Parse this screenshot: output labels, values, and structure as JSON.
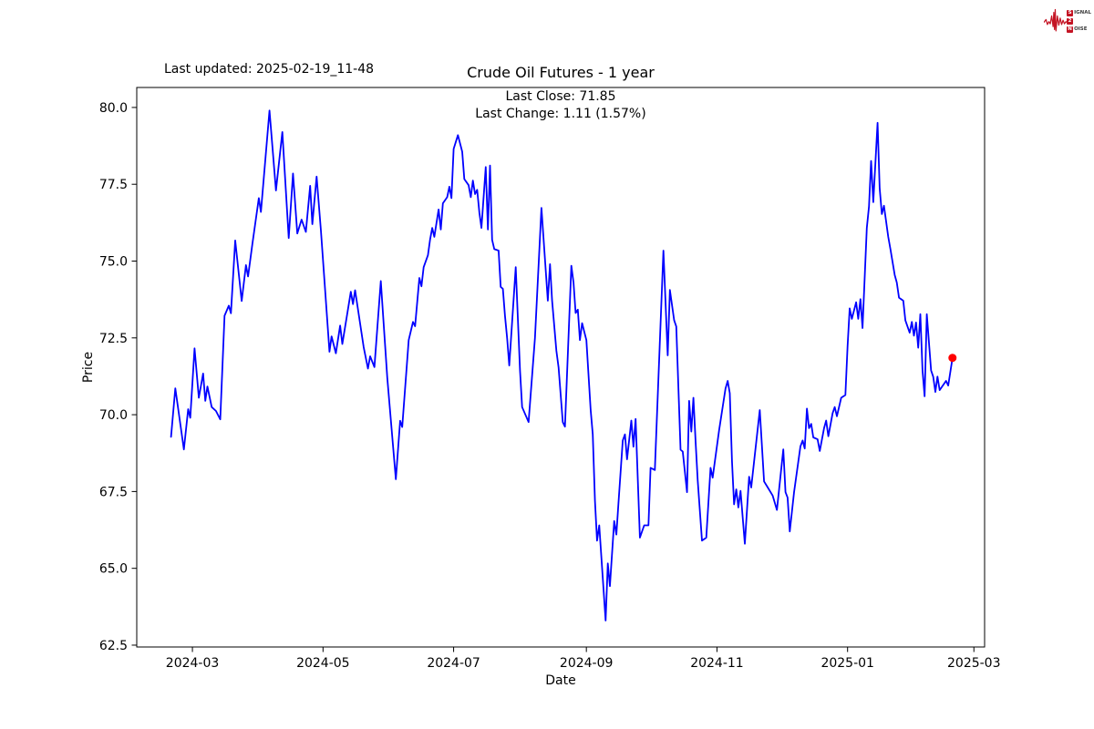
{
  "header": {
    "last_updated": "Last updated: 2025-02-19_11-48",
    "title": "Crude Oil Futures - 1 year"
  },
  "annotation": {
    "line1": "Last Close: 71.85",
    "line2": "Last Change: 1.11 (1.57%)"
  },
  "logo": {
    "rows": [
      {
        "boxed": "S",
        "rest": "IGNAL"
      },
      {
        "boxed": "2",
        "rest": ""
      },
      {
        "boxed": "N",
        "rest": "OISE"
      }
    ],
    "accent_color": "#c41424"
  },
  "chart_data": {
    "type": "line",
    "title": "Crude Oil Futures - 1 year",
    "xlabel": "Date",
    "ylabel": "Price",
    "last_close": 71.85,
    "last_change": 1.11,
    "last_change_pct": 1.57,
    "line_color": "#0000ff",
    "last_point_color": "#ff0000",
    "grid": false,
    "x_axis": {
      "start": "2024-02-04",
      "end": "2025-03-06",
      "ticks": [
        {
          "date": "2024-03-01",
          "label": "2024-03"
        },
        {
          "date": "2024-05-01",
          "label": "2024-05"
        },
        {
          "date": "2024-07-01",
          "label": "2024-07"
        },
        {
          "date": "2024-09-01",
          "label": "2024-09"
        },
        {
          "date": "2024-11-01",
          "label": "2024-11"
        },
        {
          "date": "2025-01-01",
          "label": "2025-01"
        },
        {
          "date": "2025-03-01",
          "label": "2025-03"
        }
      ]
    },
    "y_axis": {
      "min": 62.44,
      "max": 80.65,
      "ticks": [
        {
          "v": 62.5,
          "label": "62.5"
        },
        {
          "v": 65.0,
          "label": "65.0"
        },
        {
          "v": 67.5,
          "label": "67.5"
        },
        {
          "v": 70.0,
          "label": "70.0"
        },
        {
          "v": 72.5,
          "label": "72.5"
        },
        {
          "v": 75.0,
          "label": "75.0"
        },
        {
          "v": 77.5,
          "label": "77.5"
        },
        {
          "v": 80.0,
          "label": "80.0"
        }
      ]
    },
    "points": [
      [
        "2024-02-20",
        69.28
      ],
      [
        "2024-02-22",
        70.86
      ],
      [
        "2024-02-26",
        68.87
      ],
      [
        "2024-02-28",
        70.18
      ],
      [
        "2024-02-29",
        69.9
      ],
      [
        "2024-03-02",
        72.16
      ],
      [
        "2024-03-04",
        70.55
      ],
      [
        "2024-03-06",
        71.34
      ],
      [
        "2024-03-07",
        70.45
      ],
      [
        "2024-03-08",
        70.92
      ],
      [
        "2024-03-10",
        70.25
      ],
      [
        "2024-03-12",
        70.12
      ],
      [
        "2024-03-14",
        69.85
      ],
      [
        "2024-03-16",
        73.22
      ],
      [
        "2024-03-18",
        73.55
      ],
      [
        "2024-03-19",
        73.3
      ],
      [
        "2024-03-21",
        75.67
      ],
      [
        "2024-03-24",
        73.7
      ],
      [
        "2024-03-26",
        74.87
      ],
      [
        "2024-03-27",
        74.5
      ],
      [
        "2024-03-29",
        75.55
      ],
      [
        "2024-04-01",
        77.05
      ],
      [
        "2024-04-02",
        76.6
      ],
      [
        "2024-04-06",
        79.9
      ],
      [
        "2024-04-09",
        77.3
      ],
      [
        "2024-04-12",
        79.2
      ],
      [
        "2024-04-15",
        75.75
      ],
      [
        "2024-04-17",
        77.85
      ],
      [
        "2024-04-19",
        75.9
      ],
      [
        "2024-04-21",
        76.35
      ],
      [
        "2024-04-23",
        75.95
      ],
      [
        "2024-04-25",
        77.45
      ],
      [
        "2024-04-26",
        76.2
      ],
      [
        "2024-04-28",
        77.75
      ],
      [
        "2024-04-30",
        76.0
      ],
      [
        "2024-05-04",
        72.05
      ],
      [
        "2024-05-05",
        72.55
      ],
      [
        "2024-05-07",
        72.0
      ],
      [
        "2024-05-09",
        72.9
      ],
      [
        "2024-05-10",
        72.3
      ],
      [
        "2024-05-14",
        74.0
      ],
      [
        "2024-05-15",
        73.6
      ],
      [
        "2024-05-16",
        74.05
      ],
      [
        "2024-05-20",
        72.2
      ],
      [
        "2024-05-22",
        71.5
      ],
      [
        "2024-05-23",
        71.9
      ],
      [
        "2024-05-25",
        71.55
      ],
      [
        "2024-05-28",
        74.35
      ],
      [
        "2024-05-31",
        71.2
      ],
      [
        "2024-06-04",
        67.9
      ],
      [
        "2024-06-06",
        69.8
      ],
      [
        "2024-06-07",
        69.6
      ],
      [
        "2024-06-10",
        72.43
      ],
      [
        "2024-06-12",
        73.02
      ],
      [
        "2024-06-13",
        72.88
      ],
      [
        "2024-06-15",
        74.45
      ],
      [
        "2024-06-16",
        74.18
      ],
      [
        "2024-06-17",
        74.8
      ],
      [
        "2024-06-19",
        75.19
      ],
      [
        "2024-06-20",
        75.69
      ],
      [
        "2024-06-21",
        76.08
      ],
      [
        "2024-06-22",
        75.79
      ],
      [
        "2024-06-24",
        76.68
      ],
      [
        "2024-06-25",
        76.03
      ],
      [
        "2024-06-26",
        76.88
      ],
      [
        "2024-06-28",
        77.08
      ],
      [
        "2024-06-29",
        77.42
      ],
      [
        "2024-06-30",
        77.05
      ],
      [
        "2024-07-01",
        78.65
      ],
      [
        "2024-07-03",
        79.1
      ],
      [
        "2024-07-05",
        78.56
      ],
      [
        "2024-07-06",
        77.67
      ],
      [
        "2024-07-08",
        77.47
      ],
      [
        "2024-07-09",
        77.08
      ],
      [
        "2024-07-10",
        77.62
      ],
      [
        "2024-07-11",
        77.18
      ],
      [
        "2024-07-12",
        77.32
      ],
      [
        "2024-07-13",
        76.58
      ],
      [
        "2024-07-14",
        76.08
      ],
      [
        "2024-07-16",
        78.06
      ],
      [
        "2024-07-17",
        76.03
      ],
      [
        "2024-07-18",
        78.11
      ],
      [
        "2024-07-19",
        75.69
      ],
      [
        "2024-07-20",
        75.39
      ],
      [
        "2024-07-22",
        75.34
      ],
      [
        "2024-07-23",
        74.16
      ],
      [
        "2024-07-24",
        74.1
      ],
      [
        "2024-07-25",
        73.22
      ],
      [
        "2024-07-26",
        72.48
      ],
      [
        "2024-07-27",
        71.6
      ],
      [
        "2024-07-30",
        74.8
      ],
      [
        "2024-08-01",
        71.44
      ],
      [
        "2024-08-02",
        70.25
      ],
      [
        "2024-08-05",
        69.76
      ],
      [
        "2024-08-08",
        72.5
      ],
      [
        "2024-08-11",
        76.73
      ],
      [
        "2024-08-14",
        73.71
      ],
      [
        "2024-08-15",
        74.9
      ],
      [
        "2024-08-16",
        73.71
      ],
      [
        "2024-08-18",
        72.08
      ],
      [
        "2024-08-19",
        71.54
      ],
      [
        "2024-08-21",
        69.76
      ],
      [
        "2024-08-22",
        69.61
      ],
      [
        "2024-08-25",
        74.85
      ],
      [
        "2024-08-26",
        74.3
      ],
      [
        "2024-08-27",
        73.31
      ],
      [
        "2024-08-28",
        73.42
      ],
      [
        "2024-08-29",
        72.43
      ],
      [
        "2024-08-30",
        72.98
      ],
      [
        "2024-09-01",
        72.43
      ],
      [
        "2024-09-03",
        70.15
      ],
      [
        "2024-09-04",
        69.36
      ],
      [
        "2024-09-05",
        67.2
      ],
      [
        "2024-09-06",
        65.9
      ],
      [
        "2024-09-07",
        66.4
      ],
      [
        "2024-09-10",
        63.3
      ],
      [
        "2024-09-11",
        65.16
      ],
      [
        "2024-09-12",
        64.42
      ],
      [
        "2024-09-14",
        66.54
      ],
      [
        "2024-09-15",
        66.1
      ],
      [
        "2024-09-16",
        67.13
      ],
      [
        "2024-09-18",
        69.16
      ],
      [
        "2024-09-19",
        69.36
      ],
      [
        "2024-09-20",
        68.55
      ],
      [
        "2024-09-22",
        69.81
      ],
      [
        "2024-09-23",
        68.96
      ],
      [
        "2024-09-24",
        69.86
      ],
      [
        "2024-09-26",
        66.0
      ],
      [
        "2024-09-28",
        66.4
      ],
      [
        "2024-09-30",
        66.4
      ],
      [
        "2024-10-01",
        68.27
      ],
      [
        "2024-10-03",
        68.2
      ],
      [
        "2024-10-07",
        75.34
      ],
      [
        "2024-10-09",
        71.93
      ],
      [
        "2024-10-10",
        74.06
      ],
      [
        "2024-10-12",
        73.07
      ],
      [
        "2024-10-13",
        72.87
      ],
      [
        "2024-10-15",
        68.86
      ],
      [
        "2024-10-16",
        68.8
      ],
      [
        "2024-10-18",
        67.48
      ],
      [
        "2024-10-19",
        70.45
      ],
      [
        "2024-10-20",
        69.45
      ],
      [
        "2024-10-21",
        70.55
      ],
      [
        "2024-10-22",
        69.12
      ],
      [
        "2024-10-23",
        67.87
      ],
      [
        "2024-10-25",
        65.9
      ],
      [
        "2024-10-27",
        66.0
      ],
      [
        "2024-10-29",
        68.27
      ],
      [
        "2024-10-30",
        67.95
      ],
      [
        "2024-11-02",
        69.5
      ],
      [
        "2024-11-05",
        70.85
      ],
      [
        "2024-11-06",
        71.1
      ],
      [
        "2024-11-07",
        70.7
      ],
      [
        "2024-11-08",
        68.5
      ],
      [
        "2024-11-09",
        67.08
      ],
      [
        "2024-11-10",
        67.57
      ],
      [
        "2024-11-11",
        66.98
      ],
      [
        "2024-11-12",
        67.52
      ],
      [
        "2024-11-14",
        65.8
      ],
      [
        "2024-11-16",
        67.98
      ],
      [
        "2024-11-17",
        67.63
      ],
      [
        "2024-11-21",
        70.15
      ],
      [
        "2024-11-23",
        67.83
      ],
      [
        "2024-11-25",
        67.6
      ],
      [
        "2024-11-27",
        67.37
      ],
      [
        "2024-11-29",
        66.9
      ],
      [
        "2024-12-02",
        68.87
      ],
      [
        "2024-12-03",
        67.48
      ],
      [
        "2024-12-04",
        67.3
      ],
      [
        "2024-12-05",
        66.2
      ],
      [
        "2024-12-07",
        67.48
      ],
      [
        "2024-12-10",
        68.97
      ],
      [
        "2024-12-11",
        69.16
      ],
      [
        "2024-12-12",
        68.9
      ],
      [
        "2024-12-13",
        70.2
      ],
      [
        "2024-12-14",
        69.56
      ],
      [
        "2024-12-15",
        69.7
      ],
      [
        "2024-12-16",
        69.26
      ],
      [
        "2024-12-18",
        69.2
      ],
      [
        "2024-12-19",
        68.82
      ],
      [
        "2024-12-21",
        69.56
      ],
      [
        "2024-12-22",
        69.81
      ],
      [
        "2024-12-23",
        69.3
      ],
      [
        "2024-12-25",
        70.05
      ],
      [
        "2024-12-26",
        70.25
      ],
      [
        "2024-12-27",
        69.95
      ],
      [
        "2024-12-29",
        70.55
      ],
      [
        "2024-12-31",
        70.64
      ],
      [
        "2025-01-01",
        72.23
      ],
      [
        "2025-01-02",
        73.46
      ],
      [
        "2025-01-03",
        73.12
      ],
      [
        "2025-01-05",
        73.66
      ],
      [
        "2025-01-06",
        73.12
      ],
      [
        "2025-01-07",
        73.76
      ],
      [
        "2025-01-08",
        72.82
      ],
      [
        "2025-01-10",
        76.08
      ],
      [
        "2025-01-11",
        76.78
      ],
      [
        "2025-01-12",
        78.26
      ],
      [
        "2025-01-13",
        76.92
      ],
      [
        "2025-01-15",
        79.5
      ],
      [
        "2025-01-16",
        77.37
      ],
      [
        "2025-01-17",
        76.53
      ],
      [
        "2025-01-18",
        76.8
      ],
      [
        "2025-01-20",
        75.79
      ],
      [
        "2025-01-21",
        75.39
      ],
      [
        "2025-01-23",
        74.55
      ],
      [
        "2025-01-24",
        74.3
      ],
      [
        "2025-01-25",
        73.81
      ],
      [
        "2025-01-27",
        73.71
      ],
      [
        "2025-01-28",
        73.07
      ],
      [
        "2025-01-30",
        72.67
      ],
      [
        "2025-01-31",
        73.02
      ],
      [
        "2025-02-01",
        72.57
      ],
      [
        "2025-02-02",
        73.0
      ],
      [
        "2025-02-03",
        72.18
      ],
      [
        "2025-02-04",
        73.27
      ],
      [
        "2025-02-05",
        71.44
      ],
      [
        "2025-02-06",
        70.6
      ],
      [
        "2025-02-07",
        73.27
      ],
      [
        "2025-02-09",
        71.44
      ],
      [
        "2025-02-10",
        71.24
      ],
      [
        "2025-02-11",
        70.74
      ],
      [
        "2025-02-12",
        71.24
      ],
      [
        "2025-02-13",
        70.8
      ],
      [
        "2025-02-16",
        71.1
      ],
      [
        "2025-02-17",
        70.95
      ],
      [
        "2025-02-19",
        71.85
      ]
    ]
  }
}
